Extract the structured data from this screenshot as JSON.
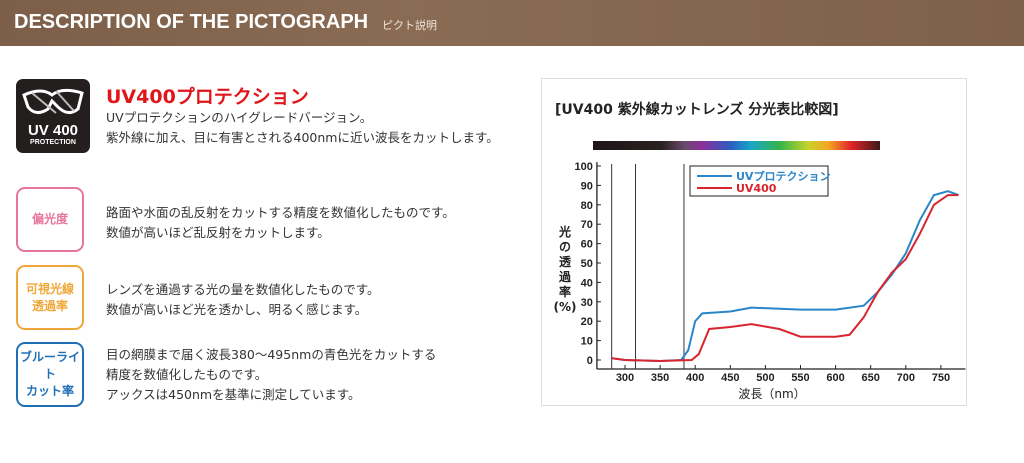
{
  "header": {
    "title": "DESCRIPTION OF THE PICTOGRAPH",
    "subtitle": "ピクト説明"
  },
  "uv_section": {
    "icon_text_1": "UV 400",
    "icon_text_2": "PROTECTION",
    "title": "UV400プロテクション",
    "lines": [
      "UVプロテクションのハイグレードバージョン。",
      "紫外線に加え、目に有害とされる400nmに近い波長をカットします。"
    ]
  },
  "pictographs": [
    {
      "label_lines": [
        "偏光度"
      ],
      "color": "#e8769a",
      "lines": [
        "路面や水面の乱反射をカットする精度を数値化したものです。",
        "数値が高いほど乱反射をカットします。"
      ]
    },
    {
      "label_lines": [
        "可視光線",
        "透過率"
      ],
      "color": "#f0a73a",
      "lines": [
        "レンズを通過する光の量を数値化したものです。",
        "数値が高いほど光を透かし、明るく感じます。"
      ]
    },
    {
      "label_lines": [
        "ブルーライト",
        "カット率"
      ],
      "color": "#1f6fb5",
      "lines": [
        "目の網膜まで届く波長380〜495nmの青色光をカットする",
        "精度を数値化したものです。",
        "アックスは450nmを基準に測定しています。"
      ]
    }
  ],
  "chart_data": {
    "type": "line",
    "title": "[UV400 紫外線カットレンズ 分光表比較図]",
    "xlabel": "波長（nm）",
    "ylabel_lines": [
      "光",
      "の",
      "透",
      "過",
      "率",
      "(%)"
    ],
    "xlim": [
      260,
      785
    ],
    "ylim": [
      0,
      100
    ],
    "xticks": [
      300,
      350,
      400,
      450,
      500,
      550,
      600,
      650,
      700,
      750
    ],
    "yticks": [
      0,
      10,
      20,
      30,
      40,
      50,
      60,
      70,
      80,
      90,
      100
    ],
    "vertical_lines": [
      281,
      315,
      384
    ],
    "legend_placement": "top-center",
    "series": [
      {
        "name": "UVプロテクション",
        "color": "#2a86c8",
        "x": [
          280,
          300,
          350,
          380,
          390,
          400,
          410,
          450,
          480,
          550,
          600,
          640,
          660,
          680,
          700,
          720,
          740,
          760,
          775
        ],
        "y": [
          1,
          0,
          -0.5,
          0,
          5,
          20,
          24,
          25,
          27,
          26,
          26,
          28,
          35,
          44,
          55,
          72,
          85,
          87,
          85
        ]
      },
      {
        "name": "UV400",
        "color": "#d8252f",
        "x": [
          280,
          300,
          350,
          395,
          405,
          420,
          450,
          480,
          520,
          550,
          600,
          620,
          640,
          660,
          680,
          700,
          720,
          740,
          760,
          775
        ],
        "y": [
          1,
          0,
          -0.5,
          0,
          3,
          16,
          17,
          18.5,
          16,
          12,
          12,
          13,
          22,
          35,
          45,
          52,
          65,
          80,
          85,
          85
        ]
      }
    ]
  }
}
